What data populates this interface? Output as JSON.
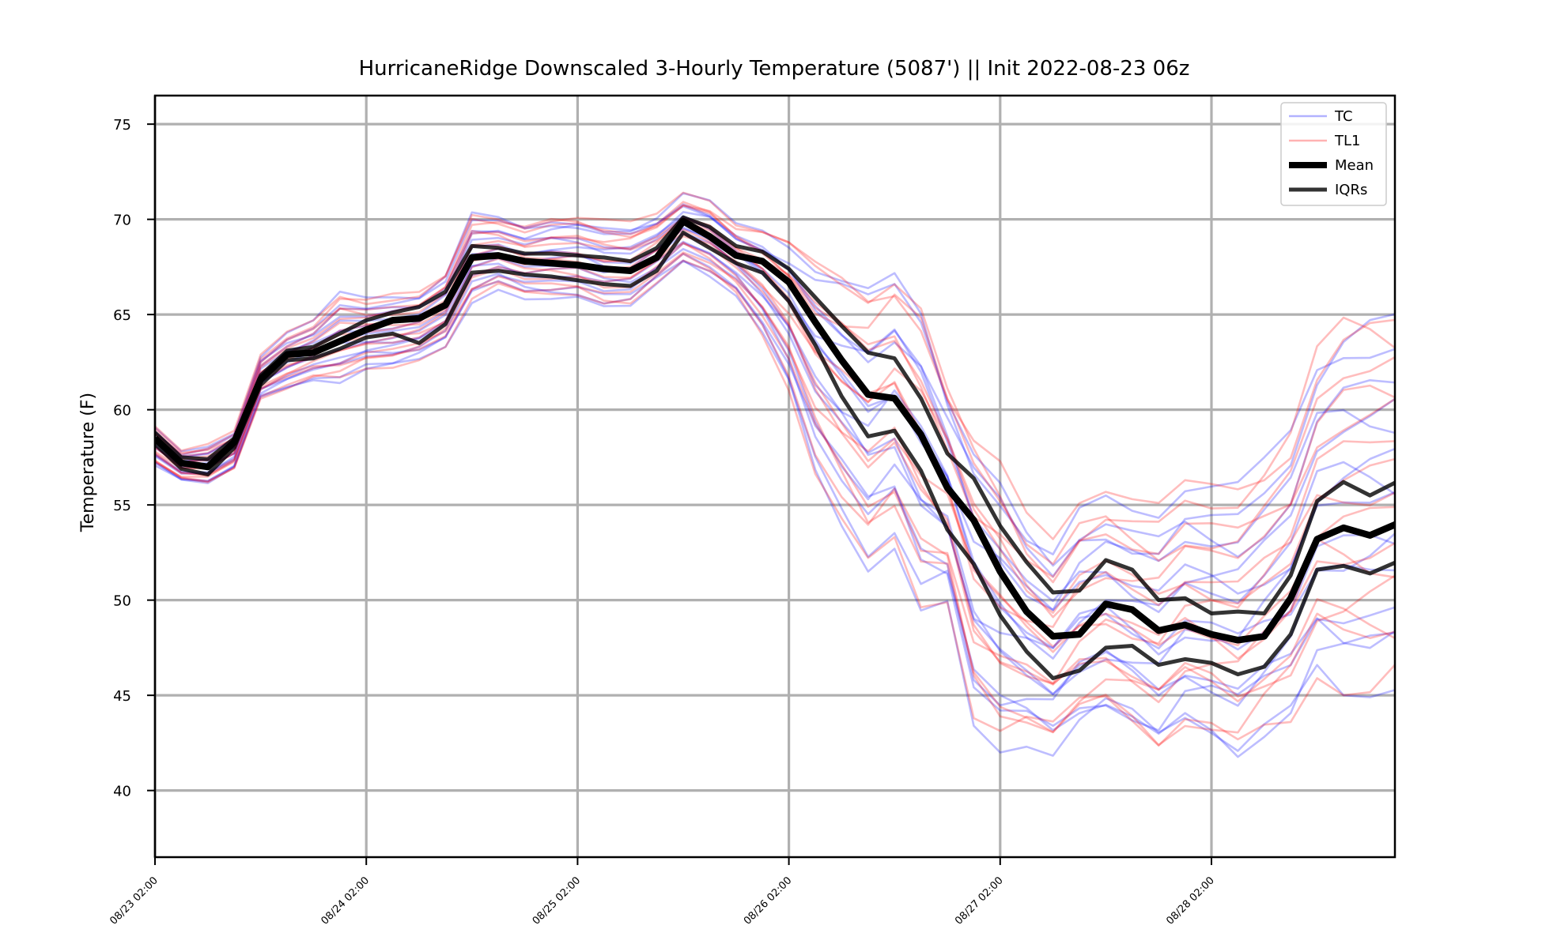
{
  "chart_data": {
    "type": "line",
    "title": "HurricaneRidge Downscaled 3-Hourly Temperature (5087') || Init 2022-08-23 06z",
    "ylabel": "Temperature (F)",
    "xlabel": "",
    "ylim": [
      36.5,
      76.5
    ],
    "x_unit": "3-hourly steps from 08/23 02:00",
    "x_range": [
      0,
      47
    ],
    "yticks": [
      40,
      45,
      50,
      55,
      60,
      65,
      70,
      75
    ],
    "xticks": [
      {
        "x": 0,
        "label": "08/23 02:00"
      },
      {
        "x": 8,
        "label": "08/24 02:00"
      },
      {
        "x": 16,
        "label": "08/25 02:00"
      },
      {
        "x": 24,
        "label": "08/26 02:00"
      },
      {
        "x": 32,
        "label": "08/27 02:00"
      },
      {
        "x": 40,
        "label": "08/28 02:00"
      }
    ],
    "grid": true,
    "legend_placement": "top-right",
    "legend": [
      {
        "label": "TC",
        "color": "#0000ff",
        "style": "thin-translucent"
      },
      {
        "label": "TL1",
        "color": "#ff0000",
        "style": "thin-translucent"
      },
      {
        "label": "Mean",
        "color": "#000000",
        "style": "thick"
      },
      {
        "label": "IQRs",
        "color": "#000000",
        "style": "medium-translucent"
      }
    ],
    "colors": {
      "TC": "#0000ff",
      "TL1": "#ff0000",
      "Mean": "#000000",
      "IQRs": "#000000"
    },
    "series": [
      {
        "name": "Mean",
        "role": "mean",
        "values": [
          58.5,
          57.2,
          57.0,
          58.3,
          61.6,
          62.9,
          63.0,
          63.6,
          64.2,
          64.7,
          64.8,
          65.5,
          68.0,
          68.1,
          67.8,
          67.7,
          67.6,
          67.4,
          67.3,
          68.0,
          69.9,
          69.1,
          68.1,
          67.8,
          66.7,
          64.6,
          62.6,
          60.8,
          60.6,
          58.7,
          55.9,
          54.2,
          51.5,
          49.4,
          48.1,
          48.2,
          49.8,
          49.5,
          48.4,
          48.7,
          48.2,
          47.9,
          48.1,
          50.1,
          53.2,
          53.8,
          53.4,
          54.0
        ]
      },
      {
        "name": "IQRs",
        "role": "iqr-upper",
        "values": [
          58.8,
          57.5,
          57.4,
          58.5,
          61.8,
          63.1,
          63.3,
          64.0,
          64.7,
          65.1,
          65.4,
          66.2,
          68.6,
          68.5,
          68.2,
          68.2,
          68.1,
          68.0,
          67.8,
          68.5,
          70.1,
          69.6,
          68.6,
          68.3,
          67.4,
          65.9,
          64.4,
          63.0,
          62.7,
          60.6,
          57.7,
          56.4,
          53.9,
          52.0,
          50.4,
          50.5,
          52.1,
          51.6,
          50.0,
          50.1,
          49.3,
          49.4,
          49.3,
          51.3,
          55.2,
          56.2,
          55.5,
          56.2
        ]
      },
      {
        "name": "IQRs",
        "role": "iqr-lower",
        "values": [
          58.2,
          56.9,
          56.6,
          58.0,
          61.3,
          62.6,
          62.7,
          63.2,
          63.8,
          64.0,
          63.5,
          64.5,
          67.2,
          67.3,
          67.1,
          67.0,
          66.8,
          66.6,
          66.5,
          67.3,
          69.3,
          68.5,
          67.7,
          67.2,
          65.7,
          63.4,
          60.7,
          58.6,
          58.9,
          56.8,
          53.7,
          51.9,
          49.2,
          47.3,
          45.9,
          46.3,
          47.5,
          47.6,
          46.6,
          46.9,
          46.7,
          46.1,
          46.5,
          48.2,
          51.6,
          51.8,
          51.4,
          52.0
        ]
      }
    ],
    "ensemble": {
      "member_counts": {
        "TC": 15,
        "TL1": 15
      },
      "spread_upper": [
        59.2,
        57.9,
        58.2,
        58.9,
        62.9,
        64.1,
        64.7,
        66.2,
        65.9,
        66.1,
        66.2,
        67.2,
        70.5,
        70.3,
        69.9,
        70.3,
        70.3,
        70.0,
        69.9,
        70.3,
        71.4,
        71.0,
        69.8,
        69.5,
        68.9,
        67.9,
        67.4,
        66.9,
        67.8,
        66.4,
        61.8,
        59.2,
        57.4,
        54.6,
        53.2,
        55.3,
        55.9,
        55.3,
        55.1,
        56.3,
        56.1,
        56.2,
        57.5,
        59.2,
        63.4,
        65.2,
        65.6,
        65.7
      ],
      "spread_lower": [
        57.0,
        56.2,
        56.0,
        56.8,
        60.5,
        61.0,
        61.5,
        61.4,
        62.1,
        62.2,
        62.6,
        63.3,
        65.6,
        66.3,
        65.8,
        65.7,
        65.7,
        65.2,
        65.3,
        66.5,
        67.6,
        66.9,
        65.9,
        63.8,
        61.0,
        56.6,
        53.9,
        51.5,
        52.7,
        49.3,
        49.8,
        43.4,
        42.0,
        42.3,
        41.8,
        43.0,
        43.5,
        42.7,
        41.6,
        42.9,
        42.5,
        41.6,
        42.8,
        43.6,
        45.9,
        45.0,
        44.9,
        45.3
      ]
    }
  }
}
